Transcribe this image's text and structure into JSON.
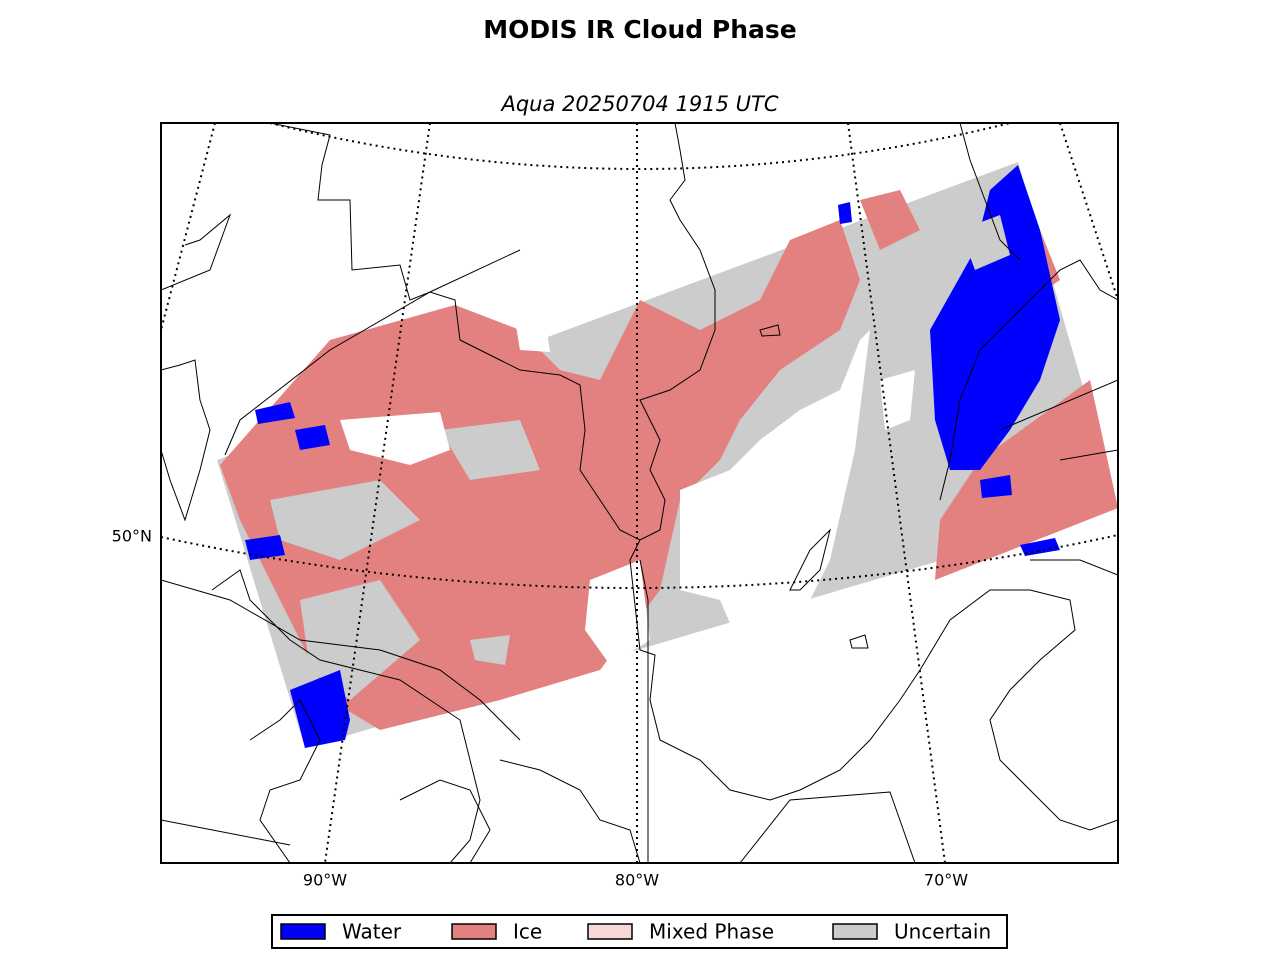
{
  "title": "MODIS IR Cloud Phase",
  "subtitle": "Aqua 20250704 1915 UTC",
  "latitude_labels": [
    "50°N"
  ],
  "longitude_labels": [
    "90°W",
    "80°W",
    "70°W"
  ],
  "legend": [
    {
      "label": "Water",
      "color": "#0000ff"
    },
    {
      "label": "Ice",
      "color": "#e38080"
    },
    {
      "label": "Mixed Phase",
      "color": "#f7d8d8"
    },
    {
      "label": "Uncertain",
      "color": "#cccccc"
    }
  ]
}
